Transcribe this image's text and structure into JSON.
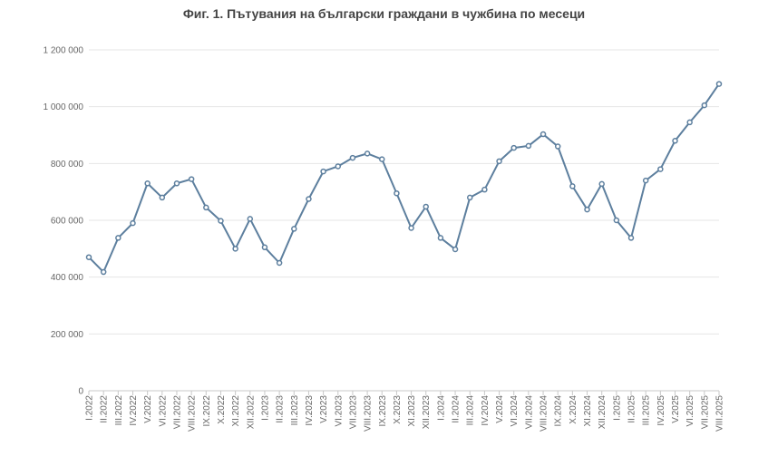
{
  "chart_data": {
    "type": "line",
    "title": "Фиг. 1. Пътувания на български граждани в чужбина по месеци",
    "xlabel": "",
    "ylabel": "",
    "ylim": [
      0,
      1200000
    ],
    "yticks": [
      0,
      200000,
      400000,
      600000,
      800000,
      1000000,
      1200000
    ],
    "ytick_labels": [
      "0",
      "200 000",
      "400 000",
      "600 000",
      "800 000",
      "1 000 000",
      "1 200 000"
    ],
    "grid": true,
    "legend": "none",
    "line_color": "#5d7f9e",
    "categories": [
      "I.2022",
      "II.2022",
      "III.2022",
      "IV.2022",
      "V.2022",
      "VI.2022",
      "VII.2022",
      "VIII.2022",
      "IX.2022",
      "X.2022",
      "XI.2022",
      "XII.2022",
      "I.2023",
      "II.2023",
      "III.2023",
      "IV.2023",
      "V.2023",
      "VI.2023",
      "VII.2023",
      "VIII.2023",
      "IX.2023",
      "X.2023",
      "XI.2023",
      "XII.2023",
      "I.2024",
      "II.2024",
      "III.2024",
      "IV.2024",
      "V.2024",
      "VI.2024",
      "VII.2024",
      "VIII.2024",
      "IX.2024",
      "X.2024",
      "XI.2024",
      "XII.2024",
      "I.2025",
      "II.2025",
      "III.2025",
      "IV.2025",
      "V.2025",
      "VI.2025",
      "VII.2025",
      "VIII.2025"
    ],
    "values": [
      470000,
      418000,
      538000,
      590000,
      730000,
      680000,
      730000,
      745000,
      645000,
      598000,
      500000,
      605000,
      505000,
      450000,
      570000,
      675000,
      772000,
      790000,
      820000,
      835000,
      815000,
      695000,
      573000,
      648000,
      538000,
      498000,
      680000,
      708000,
      808000,
      855000,
      862000,
      903000,
      860000,
      720000,
      638000,
      728000,
      600000,
      538000,
      740000,
      780000,
      880000,
      945000,
      1005000,
      1080000
    ]
  }
}
